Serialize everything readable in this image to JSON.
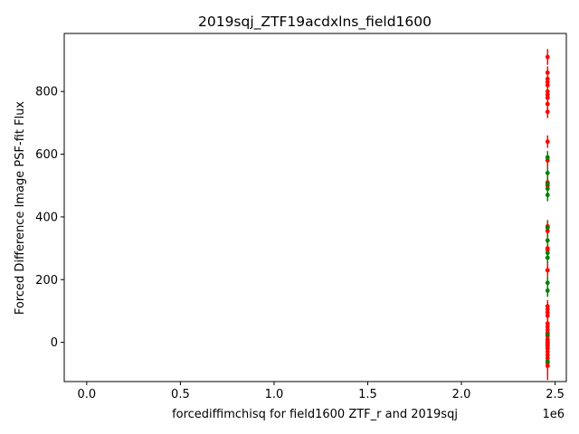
{
  "chart_data": {
    "type": "scatter",
    "title": "2019sqj_ZTF19acdxlns_field1600",
    "xlabel": "forcediffimchisq for field1600 ZTF_r and 2019sqj",
    "ylabel": "Forced Difference Image PSF-fit Flux",
    "x_offset_label": "1e6",
    "x_ticks": [
      0.0,
      0.5,
      1.0,
      1.5,
      2.0,
      2.5
    ],
    "x_tick_labels": [
      "0.0",
      "0.5",
      "1.0",
      "1.5",
      "2.0",
      "2.5"
    ],
    "y_ticks": [
      0,
      200,
      400,
      600,
      800
    ],
    "y_tick_labels": [
      "0",
      "200",
      "400",
      "600",
      "800"
    ],
    "xlim": [
      -0.12,
      2.56
    ],
    "ylim": [
      -125,
      985
    ],
    "grid": false,
    "series": [
      {
        "color": "#ff0000",
        "x": [
          2.46,
          2.46,
          2.46,
          2.46,
          2.46,
          2.46,
          2.46,
          2.46,
          2.46,
          2.46,
          2.46,
          2.46,
          2.46,
          2.46,
          2.46,
          2.46,
          2.46,
          2.46,
          2.46,
          2.46,
          2.46,
          2.46,
          2.46,
          2.46,
          2.46,
          2.46,
          2.46,
          2.46,
          2.46,
          2.46,
          2.46,
          2.46,
          2.46,
          2.46,
          2.46,
          2.46,
          2.46,
          2.46,
          2.46,
          2.46
        ],
        "y": [
          910,
          860,
          840,
          830,
          820,
          800,
          790,
          780,
          760,
          735,
          640,
          580,
          510,
          500,
          370,
          355,
          300,
          295,
          230,
          115,
          105,
          95,
          85,
          60,
          50,
          40,
          30,
          20,
          10,
          5,
          0,
          -5,
          -10,
          -15,
          -20,
          -30,
          -40,
          -50,
          -65,
          -75
        ],
        "yerr": [
          25,
          20,
          20,
          20,
          20,
          20,
          20,
          20,
          20,
          20,
          20,
          20,
          20,
          20,
          20,
          20,
          20,
          20,
          20,
          20,
          20,
          20,
          20,
          20,
          20,
          20,
          20,
          20,
          20,
          20,
          20,
          20,
          20,
          20,
          20,
          20,
          20,
          20,
          20,
          45
        ]
      },
      {
        "color": "#008000",
        "x": [
          2.46,
          2.46,
          2.46,
          2.46,
          2.46,
          2.46,
          2.46,
          2.46,
          2.46,
          2.46,
          2.46,
          2.46,
          2.46
        ],
        "y": [
          590,
          540,
          505,
          490,
          470,
          365,
          325,
          285,
          270,
          190,
          165,
          25,
          -60
        ],
        "yerr": [
          20,
          20,
          20,
          20,
          20,
          20,
          20,
          20,
          20,
          20,
          20,
          20,
          20
        ]
      }
    ]
  }
}
